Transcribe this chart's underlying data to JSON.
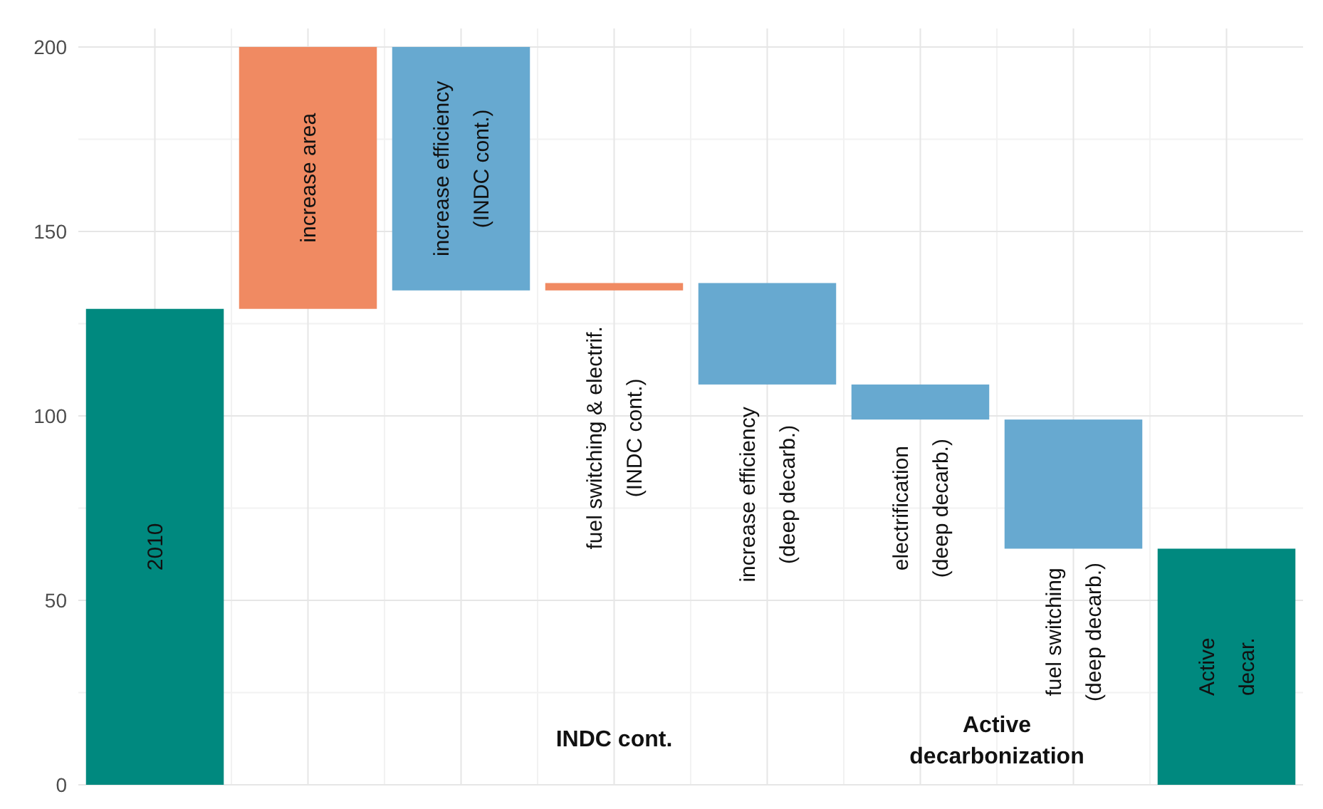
{
  "chart_data": {
    "type": "bar",
    "categories": [
      "2010",
      "increase area",
      "increase efficiency\n(INDC cont.)",
      "fuel switching & electrif.\n(INDC cont.)",
      "increase efficiency\n(deep decarb.)",
      "electrification\n(deep decarb.)",
      "fuel switching\n(deep decarb.)",
      "Active\ndecar."
    ],
    "values": [
      129,
      71,
      -66,
      2,
      -27.5,
      -9.5,
      -35,
      64
    ],
    "base": [
      0,
      129,
      200,
      134,
      136,
      108.5,
      99,
      0
    ],
    "colors": [
      "#00897f",
      "#f08a62",
      "#67a9d0",
      "#f08a62",
      "#67a9d0",
      "#67a9d0",
      "#67a9d0",
      "#00897f"
    ],
    "ylim": [
      0,
      205
    ],
    "yticks": [
      0,
      50,
      100,
      150,
      200
    ],
    "grid": true,
    "annotations": [
      "INDC cont.",
      "Active\ndecarbonization"
    ]
  }
}
